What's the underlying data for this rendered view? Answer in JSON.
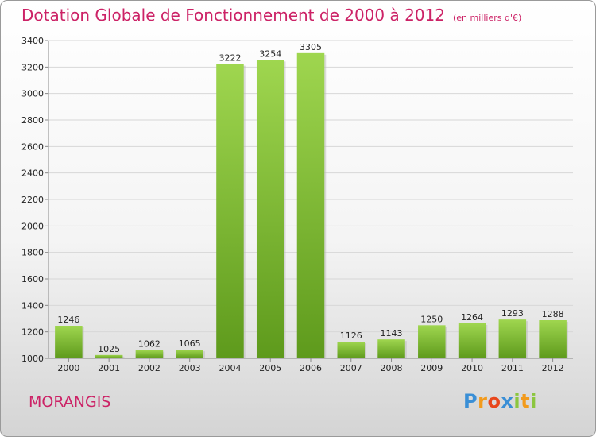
{
  "chart_data": {
    "type": "bar",
    "title": "Dotation Globale de Fonctionnement de 2000 à 2012",
    "unit": "(en milliers d'€)",
    "categories": [
      "2000",
      "2001",
      "2002",
      "2003",
      "2004",
      "2005",
      "2006",
      "2007",
      "2008",
      "2009",
      "2010",
      "2011",
      "2012"
    ],
    "values": [
      1246,
      1025,
      1062,
      1065,
      3222,
      3254,
      3305,
      1126,
      1143,
      1250,
      1264,
      1293,
      1288
    ],
    "ylim": [
      1000,
      3400
    ],
    "yticks": [
      1000,
      1200,
      1400,
      1600,
      1800,
      2000,
      2200,
      2400,
      2600,
      2800,
      3000,
      3200,
      3400
    ],
    "grid": true,
    "bar_color": "#8cc63f"
  },
  "commune": "MORANGIS",
  "brand": {
    "letters": [
      "P",
      "r",
      "o",
      "x",
      "i",
      "t",
      "i"
    ],
    "colors": [
      "#3a8fd6",
      "#f29b1d",
      "#e8471c",
      "#3a8fd6",
      "#8cc63f",
      "#f29b1d",
      "#8cc63f"
    ]
  }
}
